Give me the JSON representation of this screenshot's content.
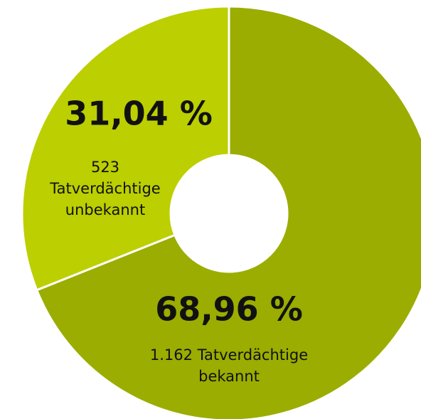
{
  "chart_data": {
    "type": "donut",
    "categories": [
      [
        "1.162 Tatverdächtige",
        "bekannt"
      ],
      [
        "523",
        "Tatverdächtige",
        "unbekannt"
      ]
    ],
    "values": [
      68.96,
      31.04
    ],
    "value_labels": [
      "68,96 %",
      "31,04 %"
    ],
    "colors": [
      "#9aad00",
      "#bccf00"
    ]
  }
}
